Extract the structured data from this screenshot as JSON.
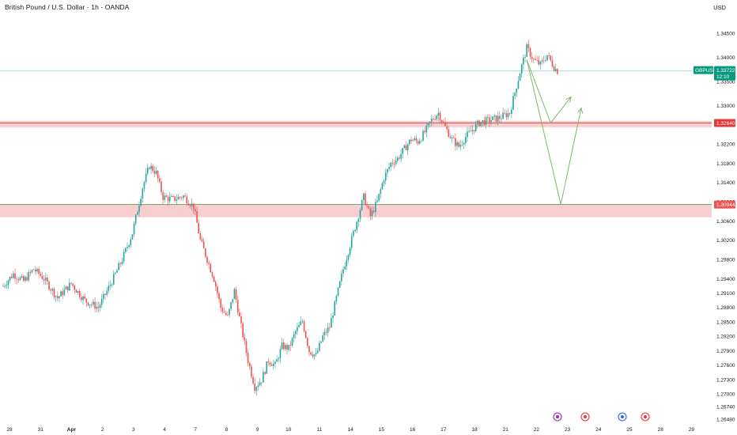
{
  "header": {
    "title": "British Pound / U.S. Dollar · 1h · OANDA",
    "currency": "USD"
  },
  "colors": {
    "up": "#26a69a",
    "down": "#ef5350",
    "zone": "#f7c5c8",
    "resistance_line": "#e53935",
    "support_line": "#66a35a",
    "current_tag": "#089981",
    "arrow": "#7cb86b",
    "price_line": "#a8d8dc"
  },
  "chart_data": {
    "type": "candlestick",
    "symbol": "GBPUSD",
    "interval": "1h",
    "current_price": {
      "label": "GBPUSD",
      "value": "1.33722",
      "countdown": "12:10",
      "y": 1.33722
    },
    "levels": [
      {
        "value": 1.3264,
        "label": "1.32640",
        "zone": [
          1.3255,
          1.3268
        ]
      },
      {
        "value": 1.30944,
        "label": "1.30944",
        "zone": [
          1.3068,
          1.3095
        ]
      }
    ],
    "y_ticks": [
      "1.34500",
      "1.34000",
      "1.33500",
      "1.33000",
      "1.32600",
      "1.32200",
      "1.31800",
      "1.31400",
      "1.31000",
      "1.30600",
      "1.30200",
      "1.29800",
      "1.29400",
      "1.29100",
      "1.28800",
      "1.28500",
      "1.28200",
      "1.27900",
      "1.27600",
      "1.27300",
      "1.27000",
      "1.26740",
      "1.26480"
    ],
    "x_ticks": [
      "28",
      "31",
      "Apr",
      "2",
      "3",
      "4",
      "7",
      "8",
      "9",
      "10",
      "11",
      "14",
      "15",
      "16",
      "17",
      "18",
      "21",
      "22",
      "23",
      "24",
      "25",
      "28",
      "29"
    ],
    "ylim": [
      1.2648,
      1.3458
    ],
    "path": [
      [
        0,
        1.2925
      ],
      [
        3,
        1.295
      ],
      [
        6,
        1.2935
      ],
      [
        9,
        1.296
      ],
      [
        12,
        1.294
      ],
      [
        16,
        1.29
      ],
      [
        20,
        1.293
      ],
      [
        24,
        1.2895
      ],
      [
        28,
        1.288
      ],
      [
        32,
        1.2935
      ],
      [
        35,
        1.298
      ],
      [
        38,
        1.3035
      ],
      [
        41,
        1.313
      ],
      [
        43,
        1.3175
      ],
      [
        45,
        1.316
      ],
      [
        47,
        1.311
      ],
      [
        50,
        1.3105
      ],
      [
        53,
        1.3112
      ],
      [
        56,
        1.309
      ],
      [
        58,
        1.302
      ],
      [
        60,
        1.298
      ],
      [
        62,
        1.294
      ],
      [
        64,
        1.288
      ],
      [
        66,
        1.286
      ],
      [
        68,
        1.2915
      ],
      [
        70,
        1.284
      ],
      [
        72,
        1.277
      ],
      [
        74,
        1.2715
      ],
      [
        76,
        1.273
      ],
      [
        78,
        1.277
      ],
      [
        80,
        1.276
      ],
      [
        82,
        1.28
      ],
      [
        84,
        1.2795
      ],
      [
        86,
        1.283
      ],
      [
        88,
        1.2852
      ],
      [
        90,
        1.279
      ],
      [
        92,
        1.278
      ],
      [
        94,
        1.282
      ],
      [
        96,
        1.284
      ],
      [
        98,
        1.29
      ],
      [
        100,
        1.296
      ],
      [
        102,
        1.301
      ],
      [
        104,
        1.306
      ],
      [
        106,
        1.311
      ],
      [
        108,
        1.307
      ],
      [
        110,
        1.31
      ],
      [
        112,
        1.315
      ],
      [
        114,
        1.318
      ],
      [
        116,
        1.319
      ],
      [
        118,
        1.321
      ],
      [
        120,
        1.323
      ],
      [
        122,
        1.3225
      ],
      [
        124,
        1.3245
      ],
      [
        126,
        1.327
      ],
      [
        128,
        1.3285
      ],
      [
        130,
        1.3255
      ],
      [
        132,
        1.323
      ],
      [
        134,
        1.3215
      ],
      [
        136,
        1.3235
      ],
      [
        138,
        1.325
      ],
      [
        140,
        1.3265
      ],
      [
        143,
        1.327
      ],
      [
        146,
        1.3275
      ],
      [
        149,
        1.3285
      ],
      [
        152,
        1.337
      ],
      [
        154,
        1.342
      ],
      [
        156,
        1.3395
      ],
      [
        158,
        1.3385
      ],
      [
        160,
        1.3405
      ],
      [
        162,
        1.338
      ],
      [
        163,
        1.3372
      ]
    ],
    "projection": [
      {
        "points": [
          [
            154,
            1.3395
          ],
          [
            161,
            1.3264
          ],
          [
            167,
            1.3318
          ]
        ]
      },
      {
        "points": [
          [
            154,
            1.3395
          ],
          [
            164,
            1.3095
          ],
          [
            170,
            1.3295
          ]
        ]
      }
    ]
  }
}
